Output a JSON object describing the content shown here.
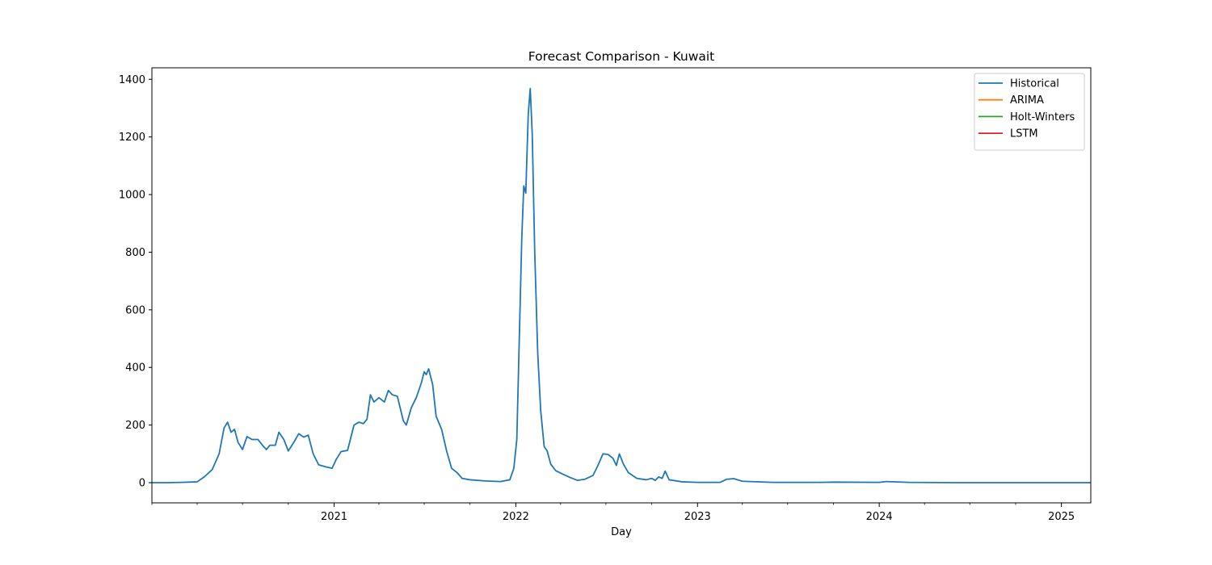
{
  "chart_data": {
    "type": "line",
    "title": "Forecast Comparison - Kuwait",
    "xlabel": "Day",
    "ylabel": "",
    "xlim": [
      "2020-01-01",
      "2025-03-01"
    ],
    "ylim": [
      -70,
      1440
    ],
    "y_ticks": [
      0,
      200,
      400,
      600,
      800,
      1000,
      1200,
      1400
    ],
    "x_ticks": [
      "2021",
      "2022",
      "2023",
      "2024",
      "2025"
    ],
    "grid": false,
    "legend_position": "top-right",
    "series": [
      {
        "name": "Historical",
        "color": "#1f77b4",
        "points": [
          [
            "2020-01-01",
            0
          ],
          [
            "2020-02-01",
            0
          ],
          [
            "2020-03-01",
            1
          ],
          [
            "2020-04-01",
            3
          ],
          [
            "2020-04-15",
            20
          ],
          [
            "2020-05-01",
            45
          ],
          [
            "2020-05-15",
            100
          ],
          [
            "2020-05-25",
            190
          ],
          [
            "2020-06-01",
            210
          ],
          [
            "2020-06-08",
            175
          ],
          [
            "2020-06-15",
            185
          ],
          [
            "2020-06-22",
            140
          ],
          [
            "2020-07-01",
            115
          ],
          [
            "2020-07-10",
            160
          ],
          [
            "2020-07-20",
            150
          ],
          [
            "2020-08-01",
            150
          ],
          [
            "2020-08-10",
            130
          ],
          [
            "2020-08-18",
            115
          ],
          [
            "2020-08-25",
            130
          ],
          [
            "2020-09-05",
            130
          ],
          [
            "2020-09-12",
            175
          ],
          [
            "2020-09-22",
            150
          ],
          [
            "2020-10-01",
            110
          ],
          [
            "2020-10-12",
            140
          ],
          [
            "2020-10-22",
            170
          ],
          [
            "2020-11-01",
            158
          ],
          [
            "2020-11-10",
            165
          ],
          [
            "2020-11-20",
            100
          ],
          [
            "2020-12-01",
            62
          ],
          [
            "2020-12-15",
            55
          ],
          [
            "2020-12-28",
            50
          ],
          [
            "2021-01-05",
            80
          ],
          [
            "2021-01-15",
            108
          ],
          [
            "2021-01-28",
            112
          ],
          [
            "2021-02-10",
            200
          ],
          [
            "2021-02-20",
            210
          ],
          [
            "2021-03-01",
            205
          ],
          [
            "2021-03-08",
            220
          ],
          [
            "2021-03-15",
            305
          ],
          [
            "2021-03-22",
            280
          ],
          [
            "2021-04-01",
            295
          ],
          [
            "2021-04-12",
            280
          ],
          [
            "2021-04-20",
            320
          ],
          [
            "2021-04-28",
            305
          ],
          [
            "2021-05-08",
            300
          ],
          [
            "2021-05-20",
            215
          ],
          [
            "2021-05-26",
            200
          ],
          [
            "2021-06-05",
            260
          ],
          [
            "2021-06-15",
            295
          ],
          [
            "2021-06-25",
            345
          ],
          [
            "2021-07-01",
            385
          ],
          [
            "2021-07-05",
            375
          ],
          [
            "2021-07-10",
            395
          ],
          [
            "2021-07-18",
            340
          ],
          [
            "2021-07-25",
            230
          ],
          [
            "2021-08-05",
            185
          ],
          [
            "2021-08-15",
            110
          ],
          [
            "2021-08-25",
            50
          ],
          [
            "2021-09-05",
            35
          ],
          [
            "2021-09-15",
            15
          ],
          [
            "2021-10-01",
            10
          ],
          [
            "2021-11-01",
            6
          ],
          [
            "2021-12-01",
            4
          ],
          [
            "2021-12-20",
            10
          ],
          [
            "2021-12-28",
            50
          ],
          [
            "2022-01-03",
            150
          ],
          [
            "2022-01-08",
            500
          ],
          [
            "2022-01-13",
            850
          ],
          [
            "2022-01-17",
            1030
          ],
          [
            "2022-01-21",
            1005
          ],
          [
            "2022-01-26",
            1280
          ],
          [
            "2022-01-30",
            1368
          ],
          [
            "2022-02-03",
            1210
          ],
          [
            "2022-02-08",
            800
          ],
          [
            "2022-02-14",
            450
          ],
          [
            "2022-02-20",
            250
          ],
          [
            "2022-02-27",
            125
          ],
          [
            "2022-03-05",
            110
          ],
          [
            "2022-03-12",
            65
          ],
          [
            "2022-03-22",
            42
          ],
          [
            "2022-04-05",
            30
          ],
          [
            "2022-04-20",
            18
          ],
          [
            "2022-05-05",
            8
          ],
          [
            "2022-05-20",
            12
          ],
          [
            "2022-06-05",
            25
          ],
          [
            "2022-06-15",
            60
          ],
          [
            "2022-06-25",
            100
          ],
          [
            "2022-07-05",
            98
          ],
          [
            "2022-07-15",
            85
          ],
          [
            "2022-07-22",
            60
          ],
          [
            "2022-07-28",
            100
          ],
          [
            "2022-08-05",
            65
          ],
          [
            "2022-08-15",
            35
          ],
          [
            "2022-09-01",
            15
          ],
          [
            "2022-09-20",
            10
          ],
          [
            "2022-10-01",
            15
          ],
          [
            "2022-10-08",
            8
          ],
          [
            "2022-10-15",
            20
          ],
          [
            "2022-10-22",
            15
          ],
          [
            "2022-10-28",
            40
          ],
          [
            "2022-11-05",
            10
          ],
          [
            "2022-12-01",
            3
          ],
          [
            "2023-01-01",
            1
          ],
          [
            "2023-02-15",
            1
          ],
          [
            "2023-03-01",
            12
          ],
          [
            "2023-03-15",
            14
          ],
          [
            "2023-04-01",
            5
          ],
          [
            "2023-06-01",
            1
          ],
          [
            "2023-09-01",
            1
          ],
          [
            "2023-10-01",
            2
          ],
          [
            "2024-01-01",
            1
          ],
          [
            "2024-01-15",
            4
          ],
          [
            "2024-03-01",
            1
          ],
          [
            "2024-06-01",
            0
          ],
          [
            "2025-03-01",
            0
          ]
        ]
      },
      {
        "name": "ARIMA",
        "color": "#ff7f0e",
        "points": []
      },
      {
        "name": "Holt-Winters",
        "color": "#2ca02c",
        "points": []
      },
      {
        "name": "LSTM",
        "color": "#d62728",
        "points": []
      }
    ]
  }
}
